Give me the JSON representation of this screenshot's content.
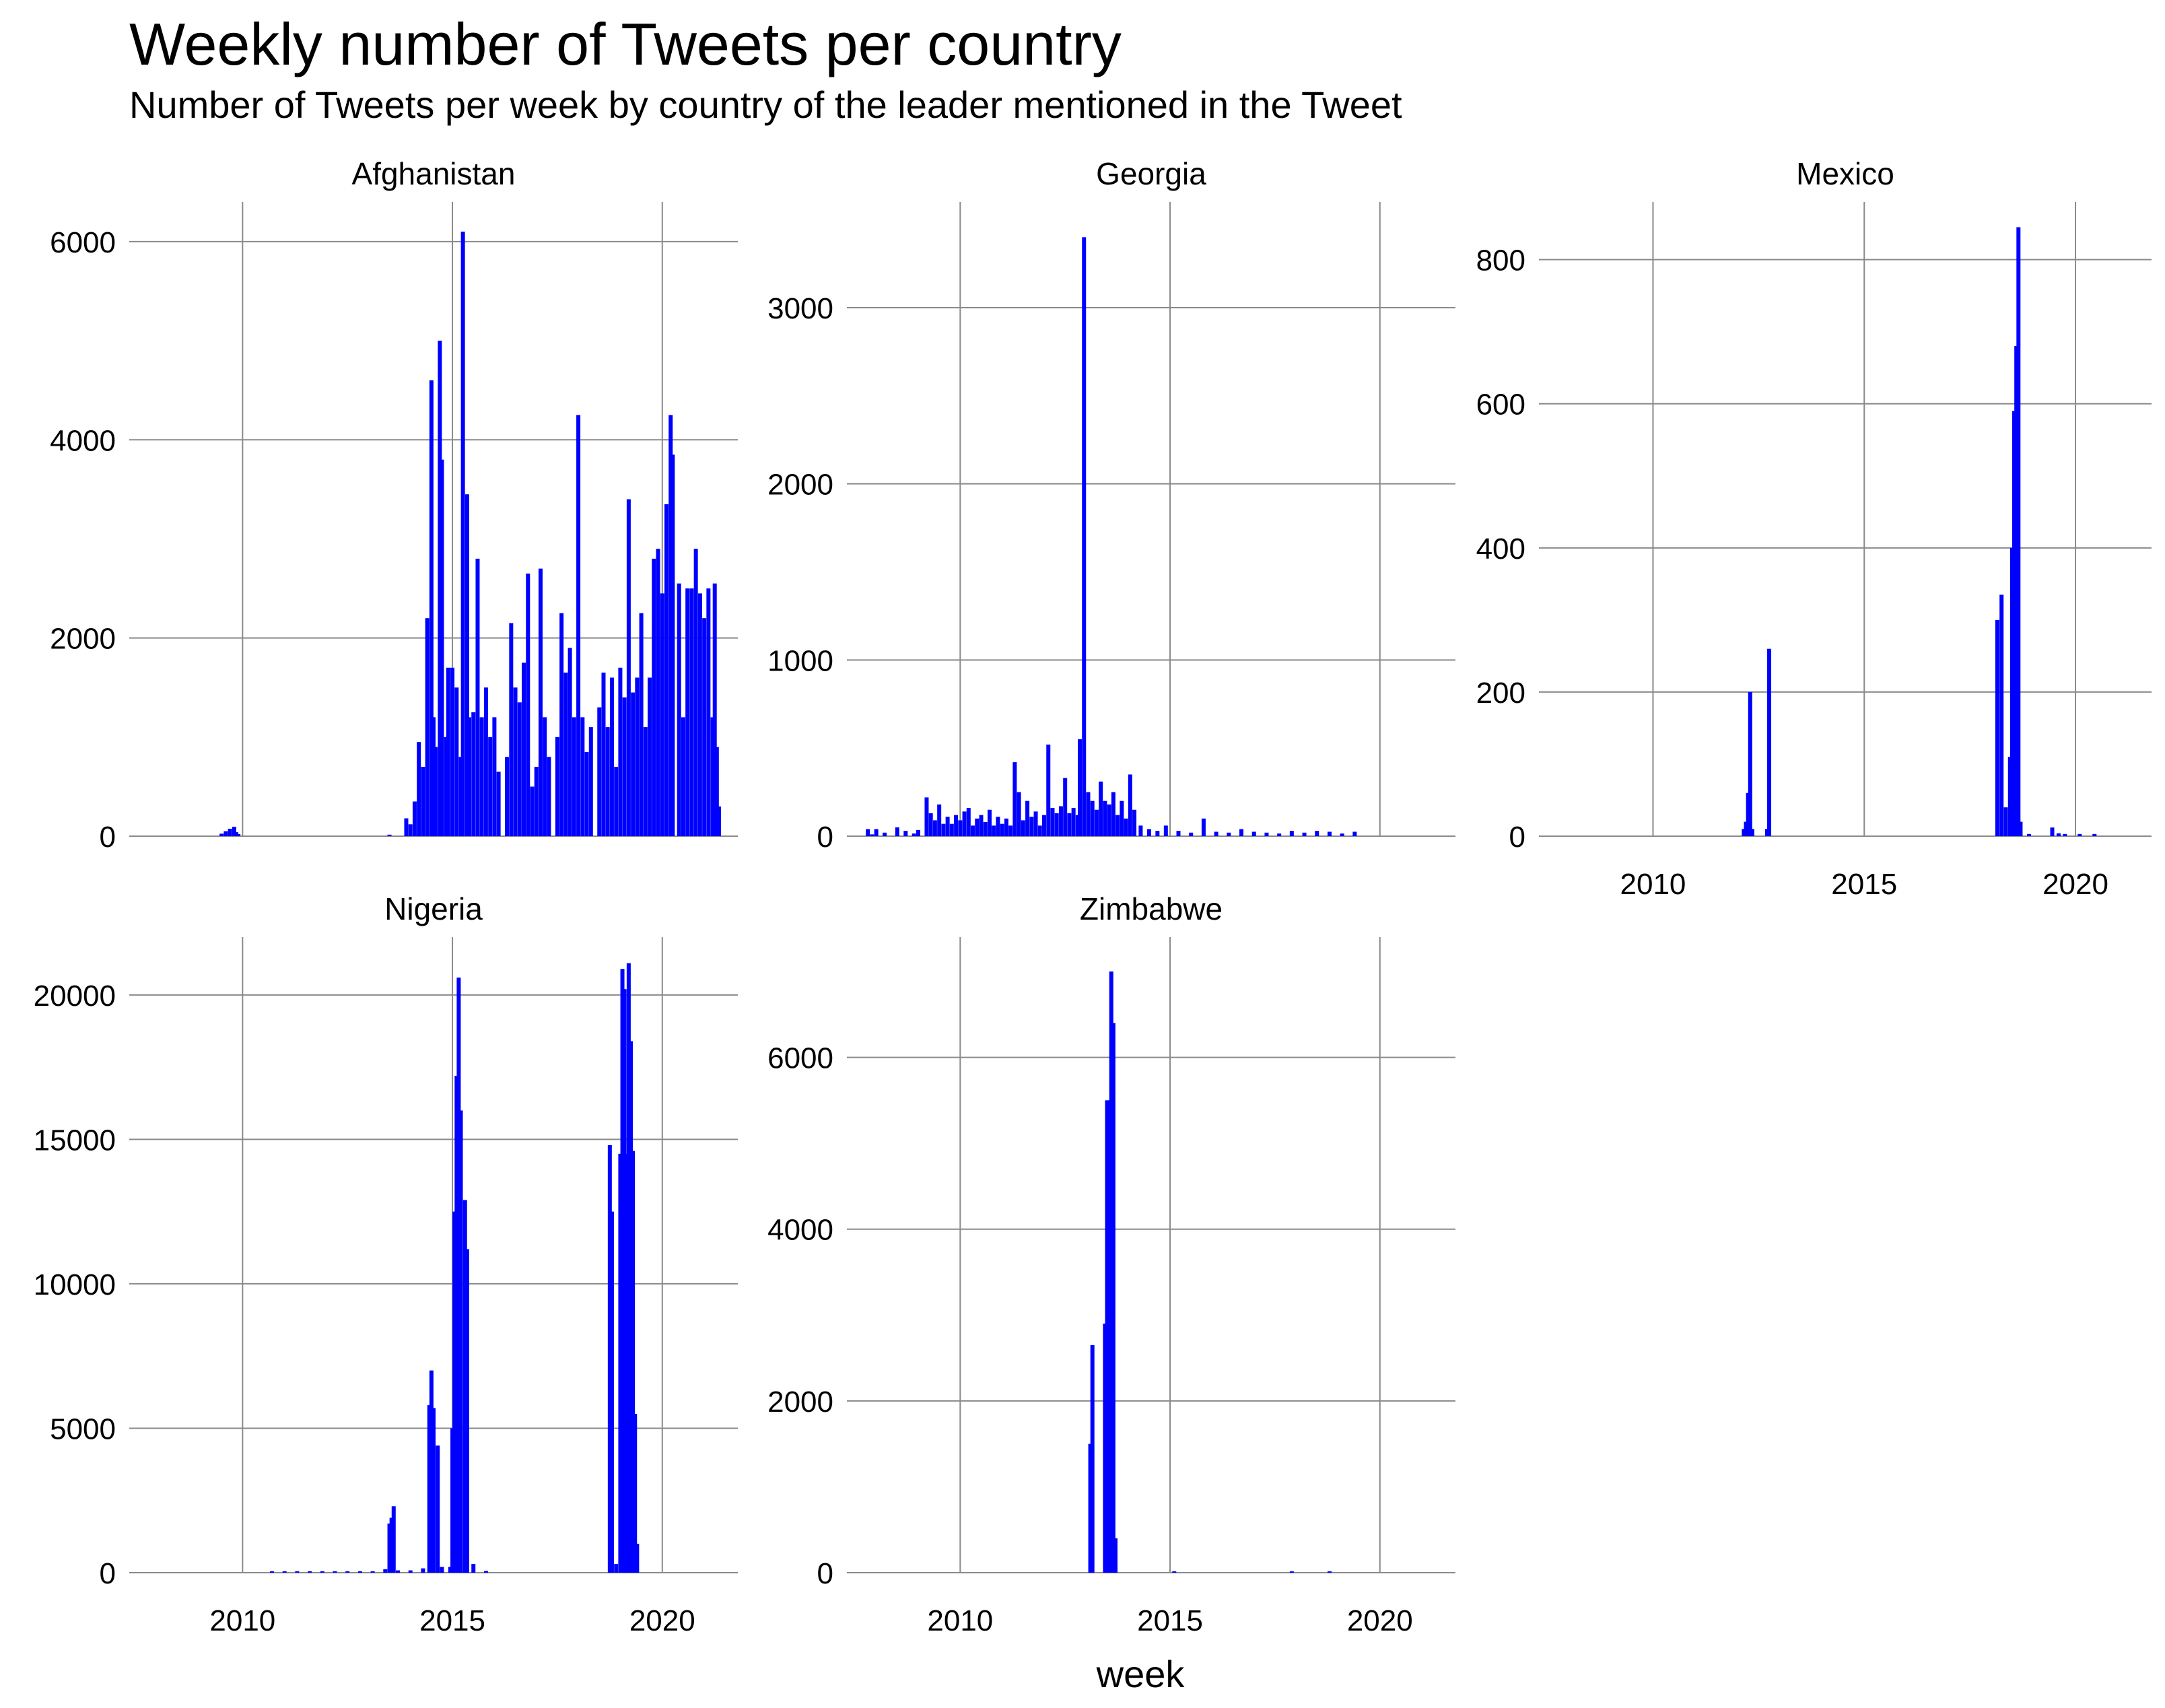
{
  "chart_data": {
    "type": "bar",
    "layout": "facet_wrap",
    "title": "Weekly number of Tweets per country",
    "subtitle": "Number of Tweets per week by country of the leader mentioned in the Tweet",
    "xlabel": "week",
    "ylabel": "",
    "grid": true,
    "legend": "none",
    "color": "#0000ff",
    "xlim": [
      2007.3,
      2021.8
    ],
    "x_ticks": [
      2010,
      2015,
      2020
    ],
    "panels": [
      {
        "name": "Afghanistan",
        "ylim": [
          0,
          6400
        ],
        "y_ticks": [
          0,
          2000,
          4000,
          6000
        ],
        "show_x_labels": false,
        "points": [
          [
            2009.5,
            25
          ],
          [
            2009.6,
            50
          ],
          [
            2009.7,
            75
          ],
          [
            2009.8,
            95
          ],
          [
            2009.85,
            40
          ],
          [
            2009.9,
            20
          ],
          [
            2013.5,
            15
          ],
          [
            2013.9,
            180
          ],
          [
            2014.0,
            120
          ],
          [
            2014.1,
            350
          ],
          [
            2014.2,
            950
          ],
          [
            2014.3,
            700
          ],
          [
            2014.4,
            2200
          ],
          [
            2014.5,
            4600
          ],
          [
            2014.55,
            1200
          ],
          [
            2014.6,
            900
          ],
          [
            2014.7,
            5000
          ],
          [
            2014.75,
            3800
          ],
          [
            2014.85,
            1000
          ],
          [
            2014.9,
            1700
          ],
          [
            2015.0,
            1700
          ],
          [
            2015.1,
            1500
          ],
          [
            2015.2,
            800
          ],
          [
            2015.25,
            6100
          ],
          [
            2015.35,
            3450
          ],
          [
            2015.4,
            1200
          ],
          [
            2015.5,
            1250
          ],
          [
            2015.6,
            2800
          ],
          [
            2015.7,
            1200
          ],
          [
            2015.8,
            1500
          ],
          [
            2015.9,
            1000
          ],
          [
            2016.0,
            1200
          ],
          [
            2016.1,
            650
          ],
          [
            2016.3,
            800
          ],
          [
            2016.4,
            2150
          ],
          [
            2016.5,
            1500
          ],
          [
            2016.6,
            1350
          ],
          [
            2016.7,
            1750
          ],
          [
            2016.8,
            2650
          ],
          [
            2016.9,
            500
          ],
          [
            2017.0,
            700
          ],
          [
            2017.1,
            2700
          ],
          [
            2017.2,
            1200
          ],
          [
            2017.3,
            800
          ],
          [
            2017.5,
            1000
          ],
          [
            2017.6,
            2250
          ],
          [
            2017.7,
            1650
          ],
          [
            2017.8,
            1900
          ],
          [
            2017.9,
            1200
          ],
          [
            2018.0,
            4250
          ],
          [
            2018.1,
            1200
          ],
          [
            2018.2,
            850
          ],
          [
            2018.3,
            1100
          ],
          [
            2018.5,
            1300
          ],
          [
            2018.6,
            1650
          ],
          [
            2018.7,
            1100
          ],
          [
            2018.8,
            1600
          ],
          [
            2018.9,
            700
          ],
          [
            2019.0,
            1700
          ],
          [
            2019.1,
            1400
          ],
          [
            2019.2,
            3400
          ],
          [
            2019.3,
            1450
          ],
          [
            2019.4,
            1600
          ],
          [
            2019.5,
            2250
          ],
          [
            2019.6,
            1100
          ],
          [
            2019.7,
            1600
          ],
          [
            2019.8,
            2800
          ],
          [
            2019.9,
            2900
          ],
          [
            2020.0,
            2450
          ],
          [
            2020.1,
            3350
          ],
          [
            2020.2,
            4250
          ],
          [
            2020.25,
            3850
          ],
          [
            2020.4,
            2550
          ],
          [
            2020.5,
            1200
          ],
          [
            2020.6,
            2500
          ],
          [
            2020.7,
            2500
          ],
          [
            2020.8,
            2900
          ],
          [
            2020.9,
            2450
          ],
          [
            2021.0,
            2200
          ],
          [
            2021.1,
            2500
          ],
          [
            2021.2,
            1200
          ],
          [
            2021.25,
            2550
          ],
          [
            2021.3,
            900
          ],
          [
            2021.35,
            300
          ]
        ]
      },
      {
        "name": "Georgia",
        "ylim": [
          0,
          3600
        ],
        "y_ticks": [
          0,
          1000,
          2000,
          3000
        ],
        "show_x_labels": false,
        "points": [
          [
            2007.8,
            40
          ],
          [
            2007.9,
            10
          ],
          [
            2008.0,
            40
          ],
          [
            2008.2,
            20
          ],
          [
            2008.5,
            50
          ],
          [
            2008.7,
            30
          ],
          [
            2008.9,
            15
          ],
          [
            2009.0,
            35
          ],
          [
            2009.2,
            220
          ],
          [
            2009.3,
            130
          ],
          [
            2009.4,
            90
          ],
          [
            2009.5,
            180
          ],
          [
            2009.6,
            70
          ],
          [
            2009.7,
            110
          ],
          [
            2009.8,
            70
          ],
          [
            2009.9,
            120
          ],
          [
            2010.0,
            90
          ],
          [
            2010.1,
            140
          ],
          [
            2010.2,
            160
          ],
          [
            2010.3,
            60
          ],
          [
            2010.4,
            100
          ],
          [
            2010.5,
            120
          ],
          [
            2010.6,
            80
          ],
          [
            2010.7,
            150
          ],
          [
            2010.8,
            60
          ],
          [
            2010.9,
            110
          ],
          [
            2011.0,
            70
          ],
          [
            2011.1,
            100
          ],
          [
            2011.2,
            60
          ],
          [
            2011.3,
            420
          ],
          [
            2011.4,
            250
          ],
          [
            2011.5,
            90
          ],
          [
            2011.6,
            200
          ],
          [
            2011.7,
            110
          ],
          [
            2011.8,
            140
          ],
          [
            2011.9,
            60
          ],
          [
            2012.0,
            120
          ],
          [
            2012.1,
            520
          ],
          [
            2012.2,
            160
          ],
          [
            2012.3,
            130
          ],
          [
            2012.4,
            170
          ],
          [
            2012.5,
            330
          ],
          [
            2012.6,
            130
          ],
          [
            2012.7,
            160
          ],
          [
            2012.8,
            120
          ],
          [
            2012.85,
            550
          ],
          [
            2012.95,
            3400
          ],
          [
            2013.05,
            250
          ],
          [
            2013.15,
            200
          ],
          [
            2013.25,
            150
          ],
          [
            2013.35,
            310
          ],
          [
            2013.45,
            200
          ],
          [
            2013.55,
            180
          ],
          [
            2013.65,
            250
          ],
          [
            2013.75,
            120
          ],
          [
            2013.85,
            200
          ],
          [
            2013.95,
            100
          ],
          [
            2014.05,
            350
          ],
          [
            2014.15,
            150
          ],
          [
            2014.3,
            60
          ],
          [
            2014.5,
            40
          ],
          [
            2014.7,
            30
          ],
          [
            2014.9,
            60
          ],
          [
            2015.2,
            30
          ],
          [
            2015.5,
            20
          ],
          [
            2015.8,
            100
          ],
          [
            2016.1,
            25
          ],
          [
            2016.4,
            20
          ],
          [
            2016.7,
            40
          ],
          [
            2017.0,
            25
          ],
          [
            2017.3,
            20
          ],
          [
            2017.6,
            15
          ],
          [
            2017.9,
            30
          ],
          [
            2018.2,
            20
          ],
          [
            2018.5,
            30
          ],
          [
            2018.8,
            25
          ],
          [
            2019.1,
            15
          ],
          [
            2019.4,
            25
          ]
        ]
      },
      {
        "name": "Mexico",
        "ylim": [
          0,
          880
        ],
        "y_ticks": [
          0,
          200,
          400,
          600,
          800
        ],
        "show_x_labels": true,
        "points": [
          [
            2012.15,
            10
          ],
          [
            2012.2,
            20
          ],
          [
            2012.25,
            60
          ],
          [
            2012.3,
            200
          ],
          [
            2012.35,
            10
          ],
          [
            2012.7,
            10
          ],
          [
            2012.75,
            260
          ],
          [
            2018.15,
            300
          ],
          [
            2018.25,
            335
          ],
          [
            2018.35,
            40
          ],
          [
            2018.45,
            110
          ],
          [
            2018.5,
            400
          ],
          [
            2018.55,
            590
          ],
          [
            2018.6,
            680
          ],
          [
            2018.65,
            845
          ],
          [
            2018.7,
            20
          ],
          [
            2018.9,
            3
          ],
          [
            2019.45,
            12
          ],
          [
            2019.6,
            4
          ],
          [
            2019.75,
            3
          ],
          [
            2020.1,
            3
          ],
          [
            2020.45,
            3
          ]
        ]
      },
      {
        "name": "Nigeria",
        "ylim": [
          0,
          22000
        ],
        "y_ticks": [
          0,
          5000,
          10000,
          15000,
          20000
        ],
        "show_x_labels": true,
        "points": [
          [
            2010.7,
            50
          ],
          [
            2011.0,
            50
          ],
          [
            2011.3,
            50
          ],
          [
            2011.6,
            50
          ],
          [
            2011.9,
            50
          ],
          [
            2012.2,
            50
          ],
          [
            2012.5,
            50
          ],
          [
            2012.8,
            50
          ],
          [
            2013.1,
            50
          ],
          [
            2013.4,
            120
          ],
          [
            2013.5,
            1700
          ],
          [
            2013.55,
            1900
          ],
          [
            2013.6,
            2300
          ],
          [
            2013.7,
            80
          ],
          [
            2014.0,
            80
          ],
          [
            2014.3,
            150
          ],
          [
            2014.45,
            5800
          ],
          [
            2014.5,
            7000
          ],
          [
            2014.55,
            5700
          ],
          [
            2014.65,
            4400
          ],
          [
            2014.75,
            200
          ],
          [
            2014.95,
            200
          ],
          [
            2015.0,
            5000
          ],
          [
            2015.05,
            12500
          ],
          [
            2015.1,
            17200
          ],
          [
            2015.15,
            20600
          ],
          [
            2015.2,
            16000
          ],
          [
            2015.3,
            12900
          ],
          [
            2015.35,
            11200
          ],
          [
            2015.5,
            300
          ],
          [
            2015.8,
            60
          ],
          [
            2018.75,
            14800
          ],
          [
            2018.8,
            12500
          ],
          [
            2018.9,
            300
          ],
          [
            2019.0,
            14500
          ],
          [
            2019.05,
            20900
          ],
          [
            2019.1,
            20200
          ],
          [
            2019.15,
            14500
          ],
          [
            2019.2,
            21100
          ],
          [
            2019.25,
            18400
          ],
          [
            2019.3,
            14600
          ],
          [
            2019.35,
            5500
          ],
          [
            2019.4,
            1000
          ]
        ]
      },
      {
        "name": "Zimbabwe",
        "ylim": [
          0,
          7400
        ],
        "y_ticks": [
          0,
          2000,
          4000,
          6000
        ],
        "show_x_labels": true,
        "points": [
          [
            2013.1,
            1500
          ],
          [
            2013.15,
            2650
          ],
          [
            2013.45,
            2900
          ],
          [
            2013.5,
            5500
          ],
          [
            2013.55,
            5500
          ],
          [
            2013.6,
            7000
          ],
          [
            2013.65,
            6400
          ],
          [
            2013.7,
            400
          ],
          [
            2015.1,
            10
          ],
          [
            2017.9,
            10
          ],
          [
            2018.8,
            10
          ]
        ]
      }
    ]
  }
}
